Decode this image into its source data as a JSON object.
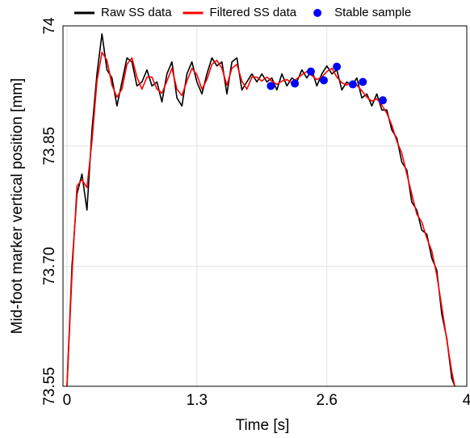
{
  "chart_data": {
    "type": "line",
    "x_label": "Time [s]",
    "y_label": "Mid-foot marker vertical position [mm]",
    "xlim": [
      -0.04,
      4
    ],
    "xticks": [
      0,
      1.3,
      2.6,
      4
    ],
    "ylim": [
      73.55,
      74
    ],
    "yticks": [
      73.55,
      {
        "value": 73.7,
        "label": "73.70"
      },
      73.85,
      74
    ],
    "grid": true,
    "legend": "top",
    "x": [
      0,
      0.05,
      0.1,
      0.15,
      0.2,
      0.25,
      0.3,
      0.35,
      0.4,
      0.45,
      0.5,
      0.55,
      0.6,
      0.65,
      0.7,
      0.75,
      0.8,
      0.85,
      0.9,
      0.95,
      1.0,
      1.05,
      1.1,
      1.15,
      1.2,
      1.25,
      1.3,
      1.35,
      1.4,
      1.45,
      1.5,
      1.55,
      1.6,
      1.65,
      1.7,
      1.75,
      1.8,
      1.85,
      1.9,
      1.95,
      2.0,
      2.05,
      2.1,
      2.15,
      2.2,
      2.25,
      2.3,
      2.35,
      2.4,
      2.45,
      2.5,
      2.55,
      2.6,
      2.65,
      2.7,
      2.75,
      2.8,
      2.85,
      2.9,
      2.95,
      3.0,
      3.05,
      3.1,
      3.15,
      3.2,
      3.25,
      3.3,
      3.35,
      3.4,
      3.45,
      3.5,
      3.55,
      3.6,
      3.65,
      3.7,
      3.75,
      3.8,
      3.85,
      3.88
    ],
    "series": [
      {
        "name": "Raw SS data",
        "color": "#000000",
        "mode": "line",
        "values": [
          73.55,
          73.7,
          73.79,
          73.815,
          73.77,
          73.87,
          73.94,
          73.99,
          73.945,
          73.935,
          73.9,
          73.93,
          73.96,
          73.955,
          73.925,
          73.93,
          73.945,
          73.925,
          73.93,
          73.905,
          73.94,
          73.955,
          73.91,
          73.9,
          73.94,
          73.955,
          73.93,
          73.915,
          73.94,
          73.96,
          73.95,
          73.955,
          73.915,
          73.955,
          73.96,
          73.92,
          73.93,
          73.94,
          73.93,
          73.94,
          73.93,
          73.935,
          73.92,
          73.94,
          73.925,
          73.935,
          73.93,
          73.945,
          73.935,
          73.945,
          73.925,
          73.94,
          73.95,
          73.94,
          73.945,
          73.92,
          73.93,
          73.925,
          73.935,
          73.91,
          73.915,
          73.9,
          73.915,
          73.895,
          73.895,
          73.87,
          73.86,
          73.83,
          73.82,
          73.78,
          73.77,
          73.745,
          73.74,
          73.71,
          73.695,
          73.64,
          73.61,
          73.56,
          73.55
        ]
      },
      {
        "name": "Filtered SS data",
        "color": "#ff0000",
        "mode": "line",
        "values": [
          73.55,
          73.689,
          73.8,
          73.808,
          73.798,
          73.856,
          73.931,
          73.967,
          73.957,
          73.926,
          73.911,
          73.921,
          73.952,
          73.96,
          73.936,
          73.921,
          73.936,
          73.936,
          73.921,
          73.916,
          73.931,
          73.947,
          73.921,
          73.913,
          73.931,
          73.947,
          73.939,
          73.921,
          73.933,
          73.952,
          73.957,
          73.947,
          73.926,
          73.947,
          73.952,
          73.931,
          73.921,
          73.936,
          73.936,
          73.931,
          73.936,
          73.931,
          73.927,
          73.931,
          73.933,
          73.929,
          73.934,
          73.939,
          73.943,
          73.938,
          73.933,
          73.936,
          73.943,
          73.947,
          73.936,
          73.929,
          73.926,
          73.931,
          73.926,
          73.919,
          73.911,
          73.906,
          73.909,
          73.901,
          73.891,
          73.876,
          73.856,
          73.841,
          73.815,
          73.79,
          73.765,
          73.755,
          73.735,
          73.719,
          73.689,
          73.649,
          73.608,
          73.568,
          73.55
        ]
      },
      {
        "name": "Stable sample",
        "color": "#0000ff",
        "mode": "markers",
        "x": [
          2.04,
          2.28,
          2.44,
          2.57,
          2.7,
          2.86,
          2.96,
          3.16
        ],
        "values": [
          73.925,
          73.928,
          73.943,
          73.932,
          73.949,
          73.927,
          73.93,
          73.907
        ]
      }
    ]
  }
}
